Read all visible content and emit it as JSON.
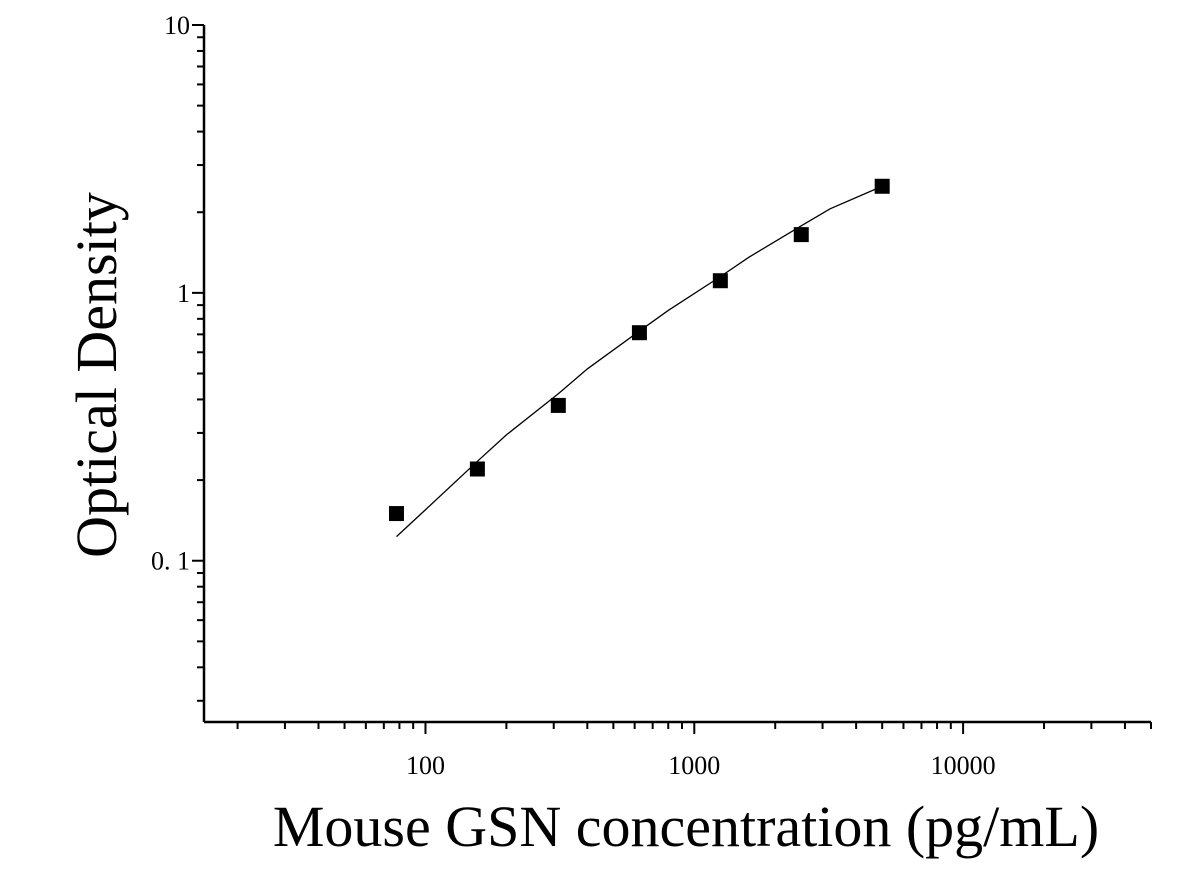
{
  "chart_data": {
    "type": "scatter",
    "title": "",
    "xlabel": "Mouse GSN concentration (pg/mL)",
    "ylabel": "Optical Density",
    "x_scale": "log",
    "y_scale": "log",
    "xlim": [
      15,
      50000
    ],
    "ylim": [
      0.025,
      10
    ],
    "x_ticks": [
      {
        "value": 100,
        "label": "100"
      },
      {
        "value": 1000,
        "label": "1000"
      },
      {
        "value": 10000,
        "label": "10000"
      }
    ],
    "y_ticks": [
      {
        "value": 10,
        "label": "10"
      },
      {
        "value": 1,
        "label": "1"
      },
      {
        "value": 0.1,
        "label": "0. 1"
      }
    ],
    "grid": false,
    "legend": "none",
    "series": [
      {
        "marker": "square",
        "color": "#000000",
        "x": [
          78,
          156,
          312,
          625,
          1250,
          2500,
          5000
        ],
        "y": [
          0.15,
          0.22,
          0.38,
          0.71,
          1.11,
          1.65,
          2.5
        ]
      }
    ],
    "fit_curve": {
      "color": "#000000",
      "x": [
        78,
        100,
        156,
        200,
        312,
        400,
        625,
        800,
        1250,
        1600,
        2500,
        3200,
        5000
      ],
      "y": [
        0.123,
        0.155,
        0.235,
        0.295,
        0.42,
        0.52,
        0.72,
        0.86,
        1.15,
        1.36,
        1.78,
        2.06,
        2.5
      ]
    }
  }
}
